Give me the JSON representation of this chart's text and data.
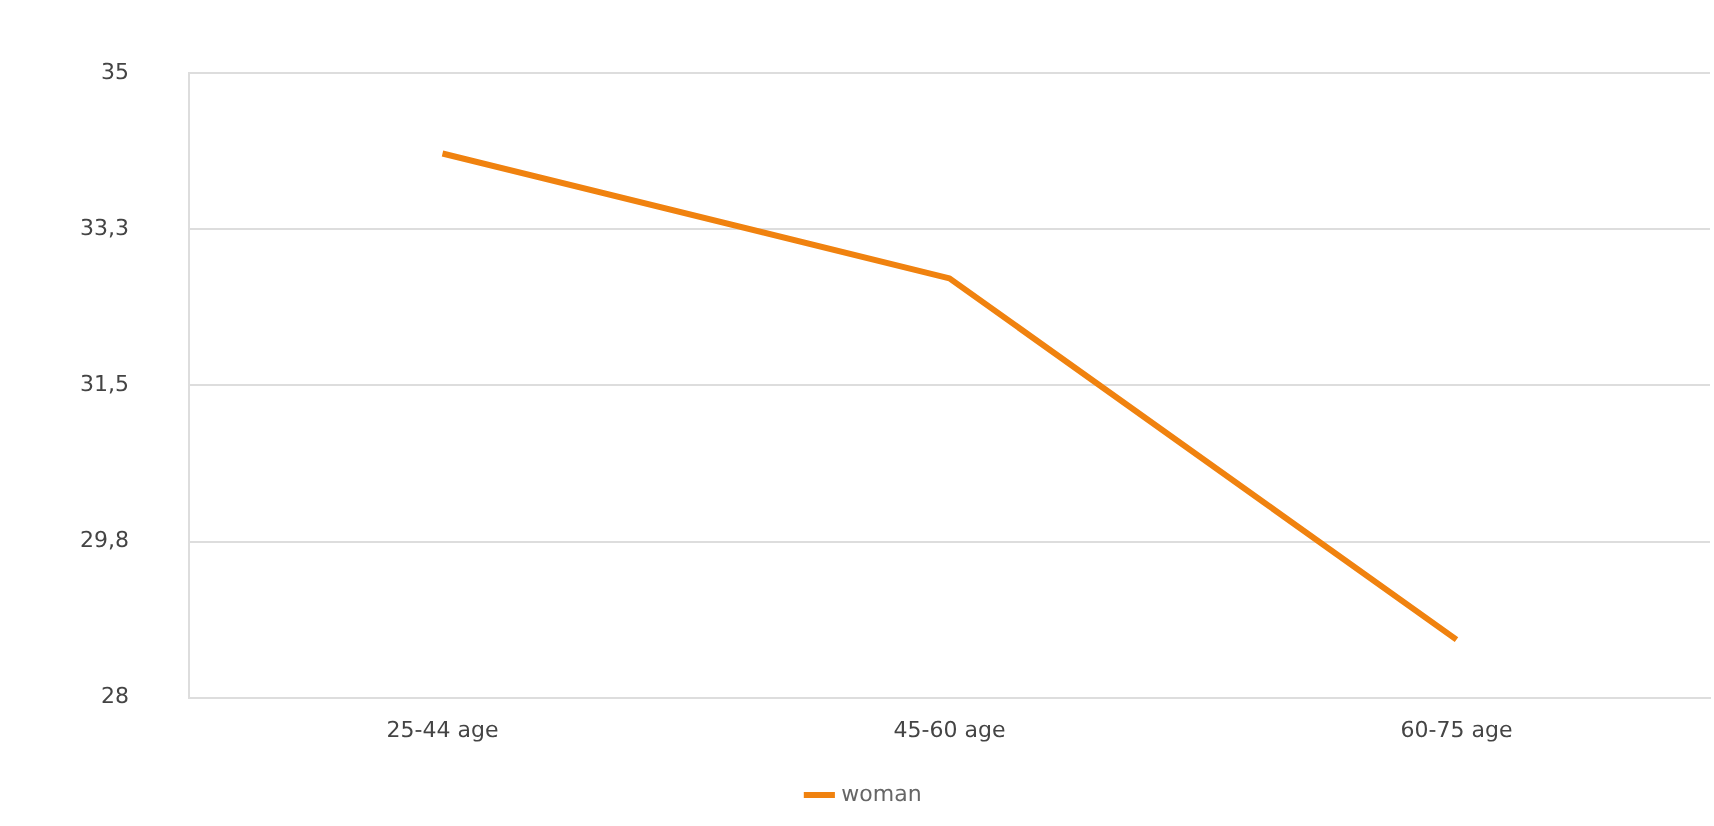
{
  "chart_data": {
    "type": "line",
    "categories": [
      "25-44 age",
      "45-60 age",
      "60-75 age"
    ],
    "series": [
      {
        "name": "woman",
        "color": "#f0820f",
        "values": [
          34.1,
          32.7,
          28.65
        ]
      }
    ],
    "ylim": [
      28,
      35
    ],
    "yticks": [
      28,
      {
        "value": 29.75,
        "label": "29,8"
      },
      {
        "value": 31.5,
        "label": "31,5"
      },
      {
        "value": 33.25,
        "label": "33,3"
      },
      35
    ],
    "grid": "y",
    "legend": "bottom",
    "marker": "none",
    "line_style": "solid"
  }
}
